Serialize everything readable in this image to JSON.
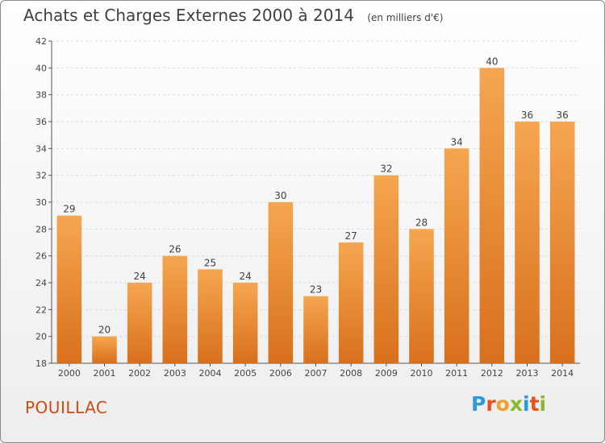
{
  "header": {
    "title": "Achats et Charges Externes 2000 à 2014",
    "unit": "(en milliers d'€)"
  },
  "footer": {
    "town": "POUILLAC",
    "logo": [
      "P",
      "r",
      "o",
      "x",
      "i",
      "t",
      "i"
    ]
  },
  "colors": {
    "bar_top": "#f6a650",
    "bar_bottom": "#d8701c",
    "grid": "#dcdcdc",
    "town": "#d04a16",
    "logo": [
      "#2b9ad8",
      "#e8521d",
      "#f0a12a",
      "#89b92a",
      "#2b9ad8",
      "#e8521d",
      "#89b92a"
    ]
  },
  "chart_data": {
    "type": "bar",
    "title": "Achats et Charges Externes 2000 à 2014",
    "subtitle": "(en milliers d'€)",
    "categories": [
      "2000",
      "2001",
      "2002",
      "2003",
      "2004",
      "2005",
      "2006",
      "2007",
      "2008",
      "2009",
      "2010",
      "2011",
      "2012",
      "2013",
      "2014"
    ],
    "values": [
      29,
      20,
      24,
      26,
      25,
      24,
      30,
      23,
      27,
      32,
      28,
      34,
      40,
      36,
      36
    ],
    "ylim": [
      18,
      42
    ],
    "yticks": [
      18,
      20,
      22,
      24,
      26,
      28,
      30,
      32,
      34,
      36,
      38,
      40,
      42
    ],
    "grid": true,
    "xlabel": "",
    "ylabel": ""
  }
}
